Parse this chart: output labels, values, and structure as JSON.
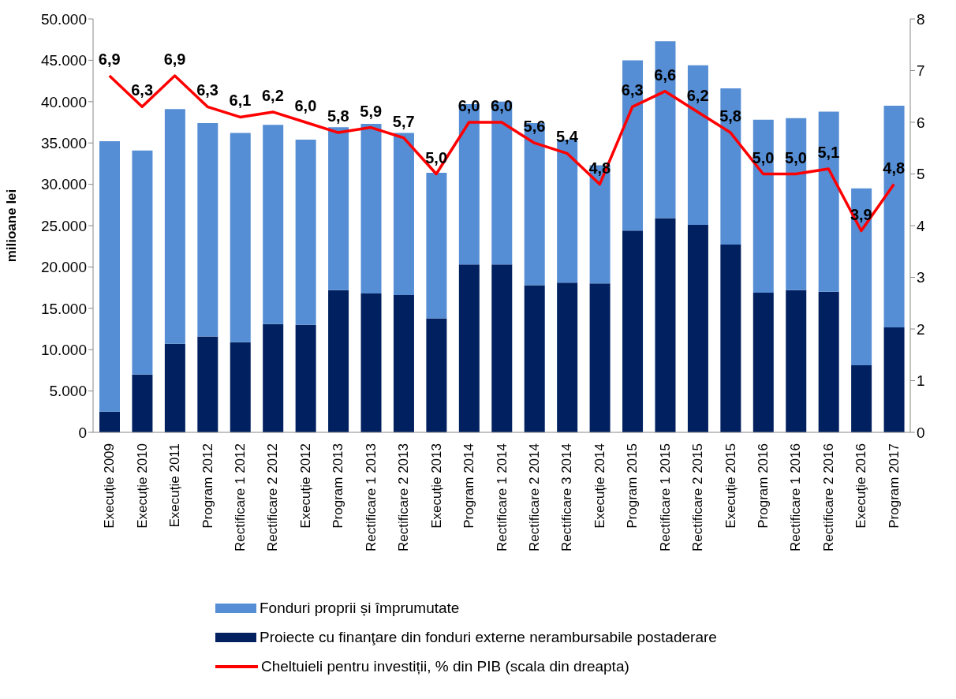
{
  "chart_data": {
    "type": "bar",
    "stacked": true,
    "ylabel": "milioane lei",
    "categories": [
      "Execuție 2009",
      "Execuție 2010",
      "Execuție 2011",
      "Program 2012",
      "Rectificare 1 2012",
      "Rectificare 2 2012",
      "Execuție 2012",
      "Program 2013",
      "Rectificare 1 2013",
      "Rectificare 2 2013",
      "Execuție 2013",
      "Program 2014",
      "Rectificare 1 2014",
      "Rectificare 2 2014",
      "Rectificare 3 2014",
      "Execuție 2014",
      "Program 2015",
      "Rectificare 1 2015",
      "Rectificare 2 2015",
      "Execuție 2015",
      "Program 2016",
      "Rectificare 1 2016",
      "Rectificare 2 2016",
      "Execuţie 2016",
      "Program 2017"
    ],
    "series": [
      {
        "name": "Proiecte cu finanţare din fonduri externe nerambursabile postaderare",
        "color": "#002060",
        "values": [
          2500,
          7000,
          10700,
          11600,
          10900,
          13100,
          13000,
          17200,
          16800,
          16600,
          13800,
          20300,
          20300,
          17800,
          18100,
          18000,
          24400,
          25900,
          25100,
          22700,
          16900,
          17200,
          17000,
          8100,
          12700
        ]
      },
      {
        "name": "Fonduri proprii și împrumutate",
        "color": "#558ed5",
        "values": [
          32700,
          27100,
          28400,
          25800,
          25300,
          24100,
          22400,
          19700,
          20500,
          19600,
          17600,
          19400,
          19700,
          19600,
          17300,
          14300,
          20600,
          21400,
          19300,
          18900,
          20900,
          20800,
          21800,
          21400,
          26800
        ]
      },
      {
        "name": "Cheltuieli pentru investiții, % din PIB (scala din dreapta)",
        "type": "line",
        "axis": "y2",
        "color": "#ff0000",
        "values": [
          6.9,
          6.3,
          6.9,
          6.3,
          6.1,
          6.2,
          6.0,
          5.8,
          5.9,
          5.7,
          5.0,
          6.0,
          6.0,
          5.6,
          5.4,
          4.8,
          6.3,
          6.6,
          6.2,
          5.8,
          5.0,
          5.0,
          5.1,
          3.9,
          4.8
        ],
        "value_labels": [
          "6,9",
          "6,3",
          "6,9",
          "6,3",
          "6,1",
          "6,2",
          "6,0",
          "5,8",
          "5,9",
          "5,7",
          "5,0",
          "6,0",
          "6,0",
          "5,6",
          "5,4",
          "4,8",
          "6,3",
          "6,6",
          "6,2",
          "5,8",
          "5,0",
          "5,0",
          "5,1",
          "3,9",
          "4,8"
        ],
        "marker": "none"
      }
    ],
    "ylim": [
      0,
      50000
    ],
    "yticks": [
      {
        "value": 0,
        "label": "0"
      },
      {
        "value": 5000,
        "label": "5.000"
      },
      {
        "value": 10000,
        "label": "10.000"
      },
      {
        "value": 15000,
        "label": "15.000"
      },
      {
        "value": 20000,
        "label": "20.000"
      },
      {
        "value": 25000,
        "label": "25.000"
      },
      {
        "value": 30000,
        "label": "30.000"
      },
      {
        "value": 35000,
        "label": "35.000"
      },
      {
        "value": 40000,
        "label": "40.000"
      },
      {
        "value": 45000,
        "label": "45.000"
      },
      {
        "value": 50000,
        "label": "50.000"
      }
    ],
    "y2lim": [
      0,
      8
    ],
    "y2ticks": [
      0,
      1,
      2,
      3,
      4,
      5,
      6,
      7,
      8
    ],
    "grid": false,
    "legend": "bottom"
  }
}
